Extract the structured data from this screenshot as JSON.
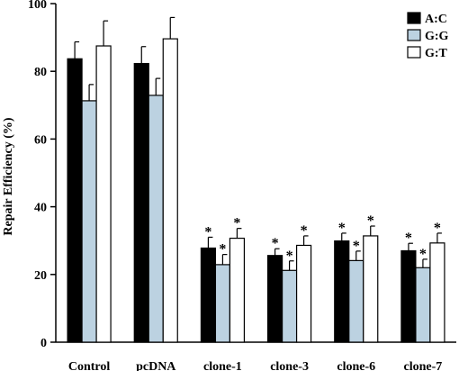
{
  "chart_data": {
    "type": "bar",
    "ylabel": "Repair Efficiency (%)",
    "ylim": [
      0,
      100
    ],
    "yticks": [
      0,
      20,
      40,
      60,
      80,
      100
    ],
    "categories": [
      "Control",
      "pcDNA",
      "clone-1",
      "clone-3",
      "clone-6",
      "clone-7"
    ],
    "series": [
      {
        "name": "A:C",
        "color": "#000000",
        "values": [
          83.7,
          82.3,
          27.8,
          25.6,
          29.9,
          27.0
        ],
        "errors": [
          5.0,
          5.0,
          3.2,
          2.0,
          2.3,
          2.2
        ],
        "significant": [
          false,
          false,
          true,
          true,
          true,
          true
        ]
      },
      {
        "name": "G:G",
        "color": "#bcd2e1",
        "values": [
          71.3,
          72.9,
          22.9,
          21.2,
          24.1,
          22.0
        ],
        "errors": [
          4.8,
          5.0,
          3.0,
          2.8,
          2.8,
          2.5
        ],
        "significant": [
          false,
          false,
          true,
          true,
          true,
          true
        ]
      },
      {
        "name": "G:T",
        "color": "#ffffff",
        "values": [
          87.5,
          89.6,
          30.7,
          28.6,
          31.4,
          29.3
        ],
        "errors": [
          7.4,
          6.3,
          2.9,
          2.8,
          2.9,
          2.9
        ],
        "significant": [
          false,
          false,
          true,
          true,
          true,
          true
        ]
      }
    ],
    "significance_marker": "*",
    "legend_position": "top-right",
    "grid": false
  }
}
